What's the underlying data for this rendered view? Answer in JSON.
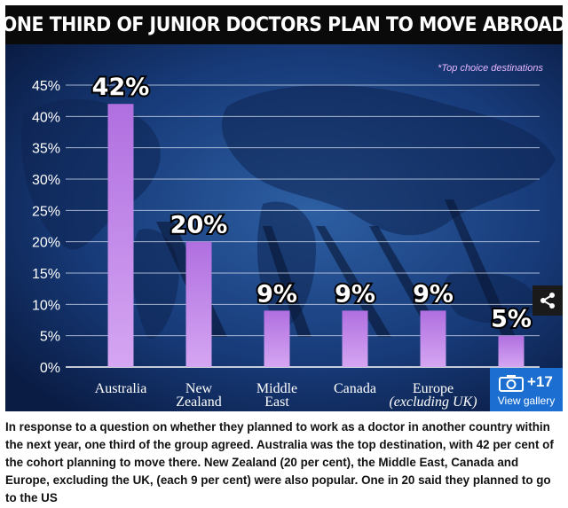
{
  "title": "ONE THIRD OF JUNIOR DOCTORS PLAN TO MOVE ABROAD",
  "legend_note": "*Top choice destinations",
  "caption": "In response to a question on whether they planned to work as a doctor in another country within the next year, one third of the group agreed. Australia was the top destination, with 42 per cent of the cohort planning to move there. New Zealand (20 per cent), the Middle East, Canada and Europe, excluding the UK, (each 9 per cent) were also popular. One in 20 said they planned to go to the US",
  "gallery": {
    "count": "+17",
    "label": "View gallery"
  },
  "icons": {
    "share": "share-icon",
    "camera": "camera-icon"
  },
  "colors": {
    "bar_top": "#b06fe0",
    "bar_bottom": "#d5a6f2",
    "background": "#0b1f4a",
    "title_bg": "#0a0a0a",
    "gallery_bg": "#1c6fd1"
  },
  "chart_data": {
    "type": "bar",
    "categories": [
      [
        "Australia"
      ],
      [
        "New",
        "Zealand"
      ],
      [
        "Middle",
        "East"
      ],
      [
        "Canada"
      ],
      [
        "Europe",
        "(excluding UK)"
      ],
      [
        ""
      ]
    ],
    "values": [
      42,
      20,
      9,
      9,
      9,
      5
    ],
    "value_labels": [
      "42%",
      "20%",
      "9%",
      "9%",
      "9%",
      "5%"
    ],
    "y_ticks": [
      "0%",
      "5%",
      "10%",
      "15%",
      "20%",
      "25%",
      "30%",
      "35%",
      "40%",
      "45%"
    ],
    "ylim": [
      0,
      45
    ],
    "grid": true
  }
}
